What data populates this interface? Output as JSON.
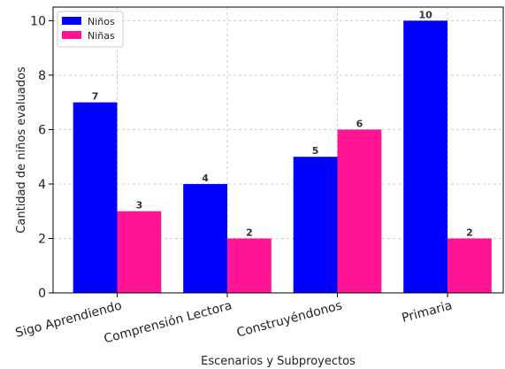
{
  "chart_data": {
    "type": "bar",
    "title": "",
    "xlabel": "Escenarios y Subproyectos",
    "ylabel": "Cantidad de niños evaluados",
    "categories": [
      "Sigo Aprendiendo",
      "Comprensión Lectora",
      "Construyéndonos",
      "Primaria"
    ],
    "series": [
      {
        "name": "Niños",
        "values": [
          7,
          4,
          5,
          10
        ],
        "color": "#0000ff"
      },
      {
        "name": "Niñas",
        "values": [
          3,
          2,
          6,
          2
        ],
        "color": "#ff1493"
      }
    ],
    "ylim": [
      0,
      10.5
    ],
    "yticks": [
      0,
      2,
      4,
      6,
      8,
      10
    ],
    "grid": true,
    "legend_position": "top-left",
    "data_labels": true
  }
}
